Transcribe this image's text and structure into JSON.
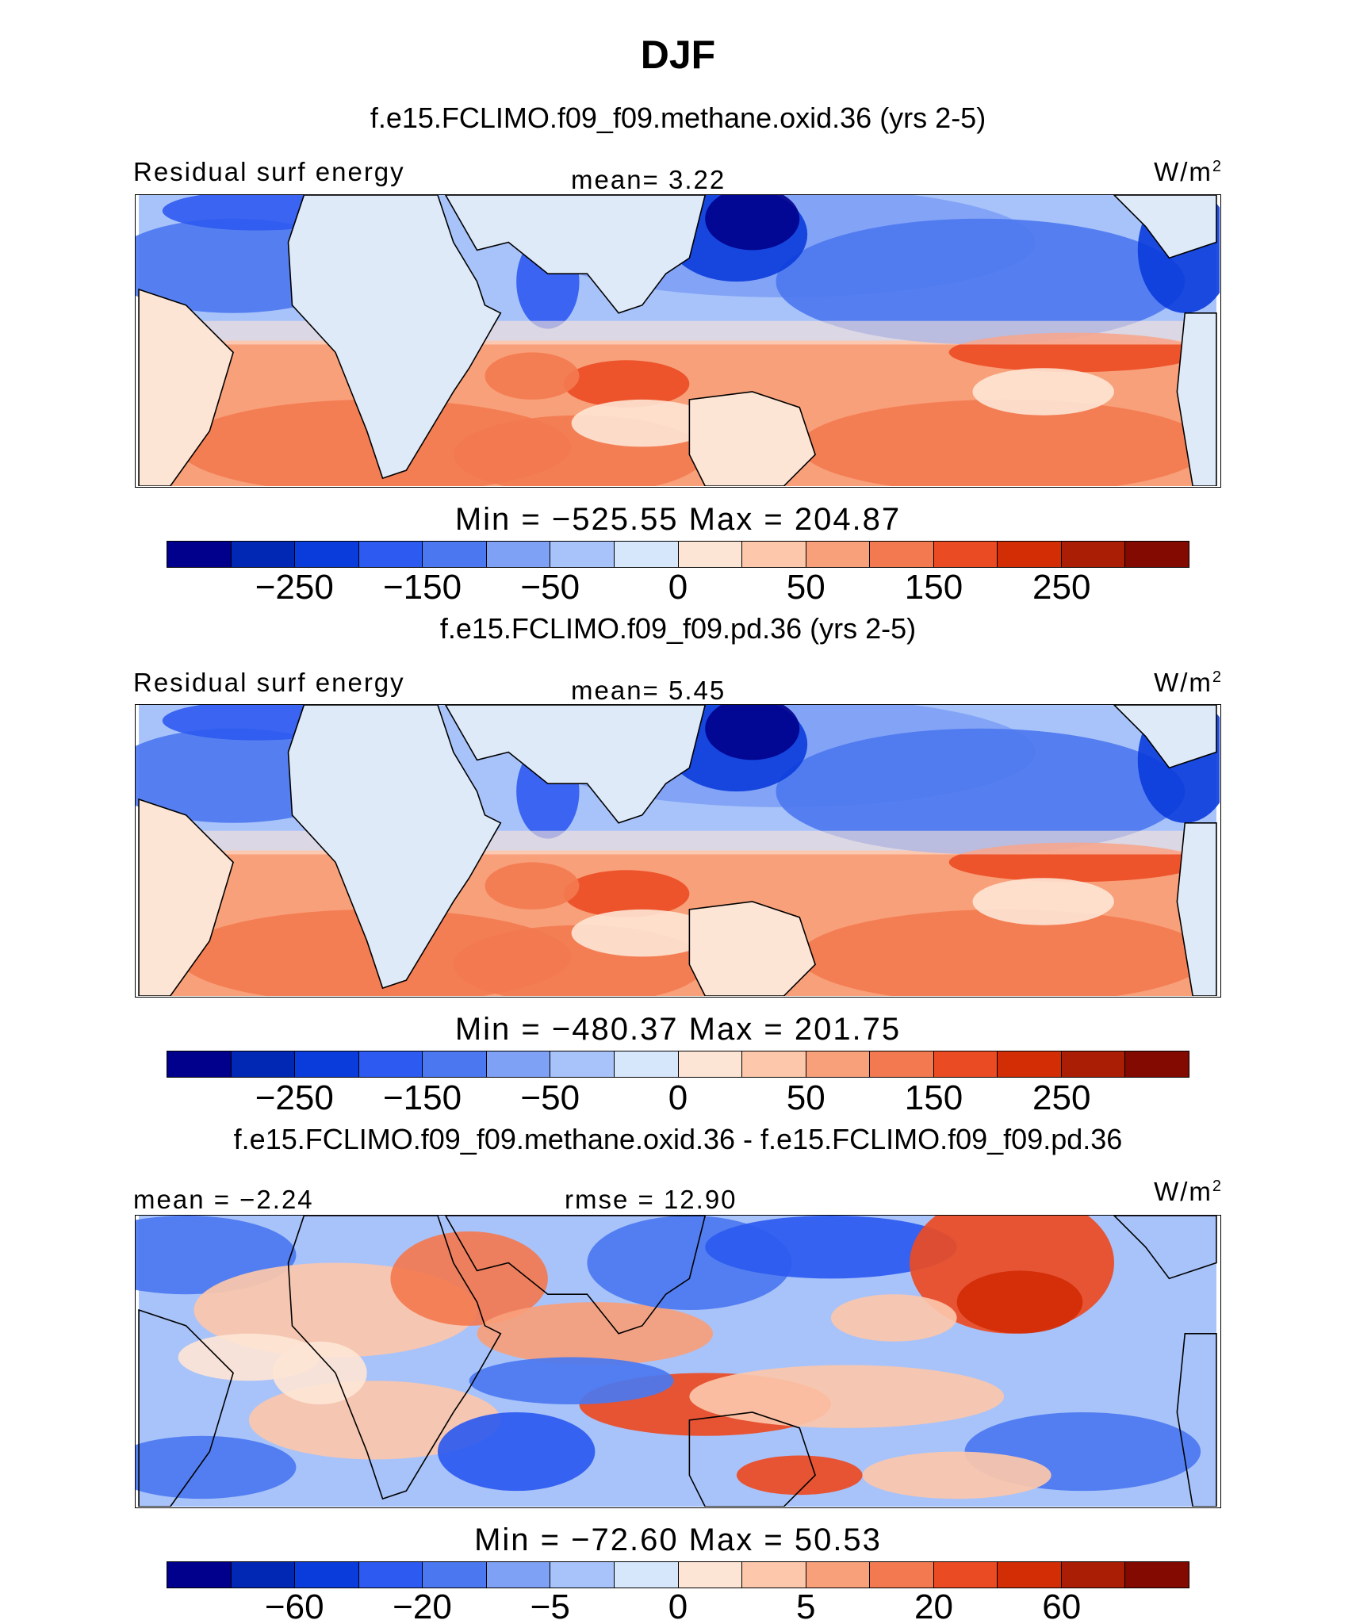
{
  "title": "DJF",
  "palette": [
    "#00008c",
    "#0028b4",
    "#0a3cdc",
    "#2d5af0",
    "#4b78f0",
    "#7ea0f5",
    "#a8c3fa",
    "#d6e6fb",
    "#fde5d5",
    "#fcc7aa",
    "#f8a07a",
    "#f37a50",
    "#eb4b23",
    "#d22d05",
    "#aa1e05",
    "#820a00"
  ],
  "land_color": "#dfeaf8",
  "panels": [
    {
      "case": "f.e15.FCLIMO.f09_f09.methane.oxid.36 (yrs 2-5)",
      "left_label": "Residual surf energy",
      "center_label": "mean=   3.22",
      "unit_base": "W/m",
      "unit_exp": "2",
      "minmax": "Min  =  −525.55  Max  =  204.87",
      "ticks": [
        "−250",
        "−150",
        "−50",
        "0",
        "50",
        "150",
        "250"
      ]
    },
    {
      "case": "f.e15.FCLIMO.f09_f09.pd.36 (yrs 2-5)",
      "left_label": "Residual surf energy",
      "center_label": "mean=   5.45",
      "unit_base": "W/m",
      "unit_exp": "2",
      "minmax": "Min  =  −480.37  Max  =  201.75",
      "ticks": [
        "−250",
        "−150",
        "−50",
        "0",
        "50",
        "150",
        "250"
      ]
    },
    {
      "case": "f.e15.FCLIMO.f09_f09.methane.oxid.36 - f.e15.FCLIMO.f09_f09.pd.36",
      "left_label": "mean  =   −2.24",
      "center_label": "rmse  =   12.90",
      "unit_base": "W/m",
      "unit_exp": "2",
      "minmax": "Min  =  −72.60  Max  =   50.53",
      "ticks": [
        "−60",
        "−20",
        "−5",
        "0",
        "5",
        "20",
        "60"
      ]
    }
  ]
}
